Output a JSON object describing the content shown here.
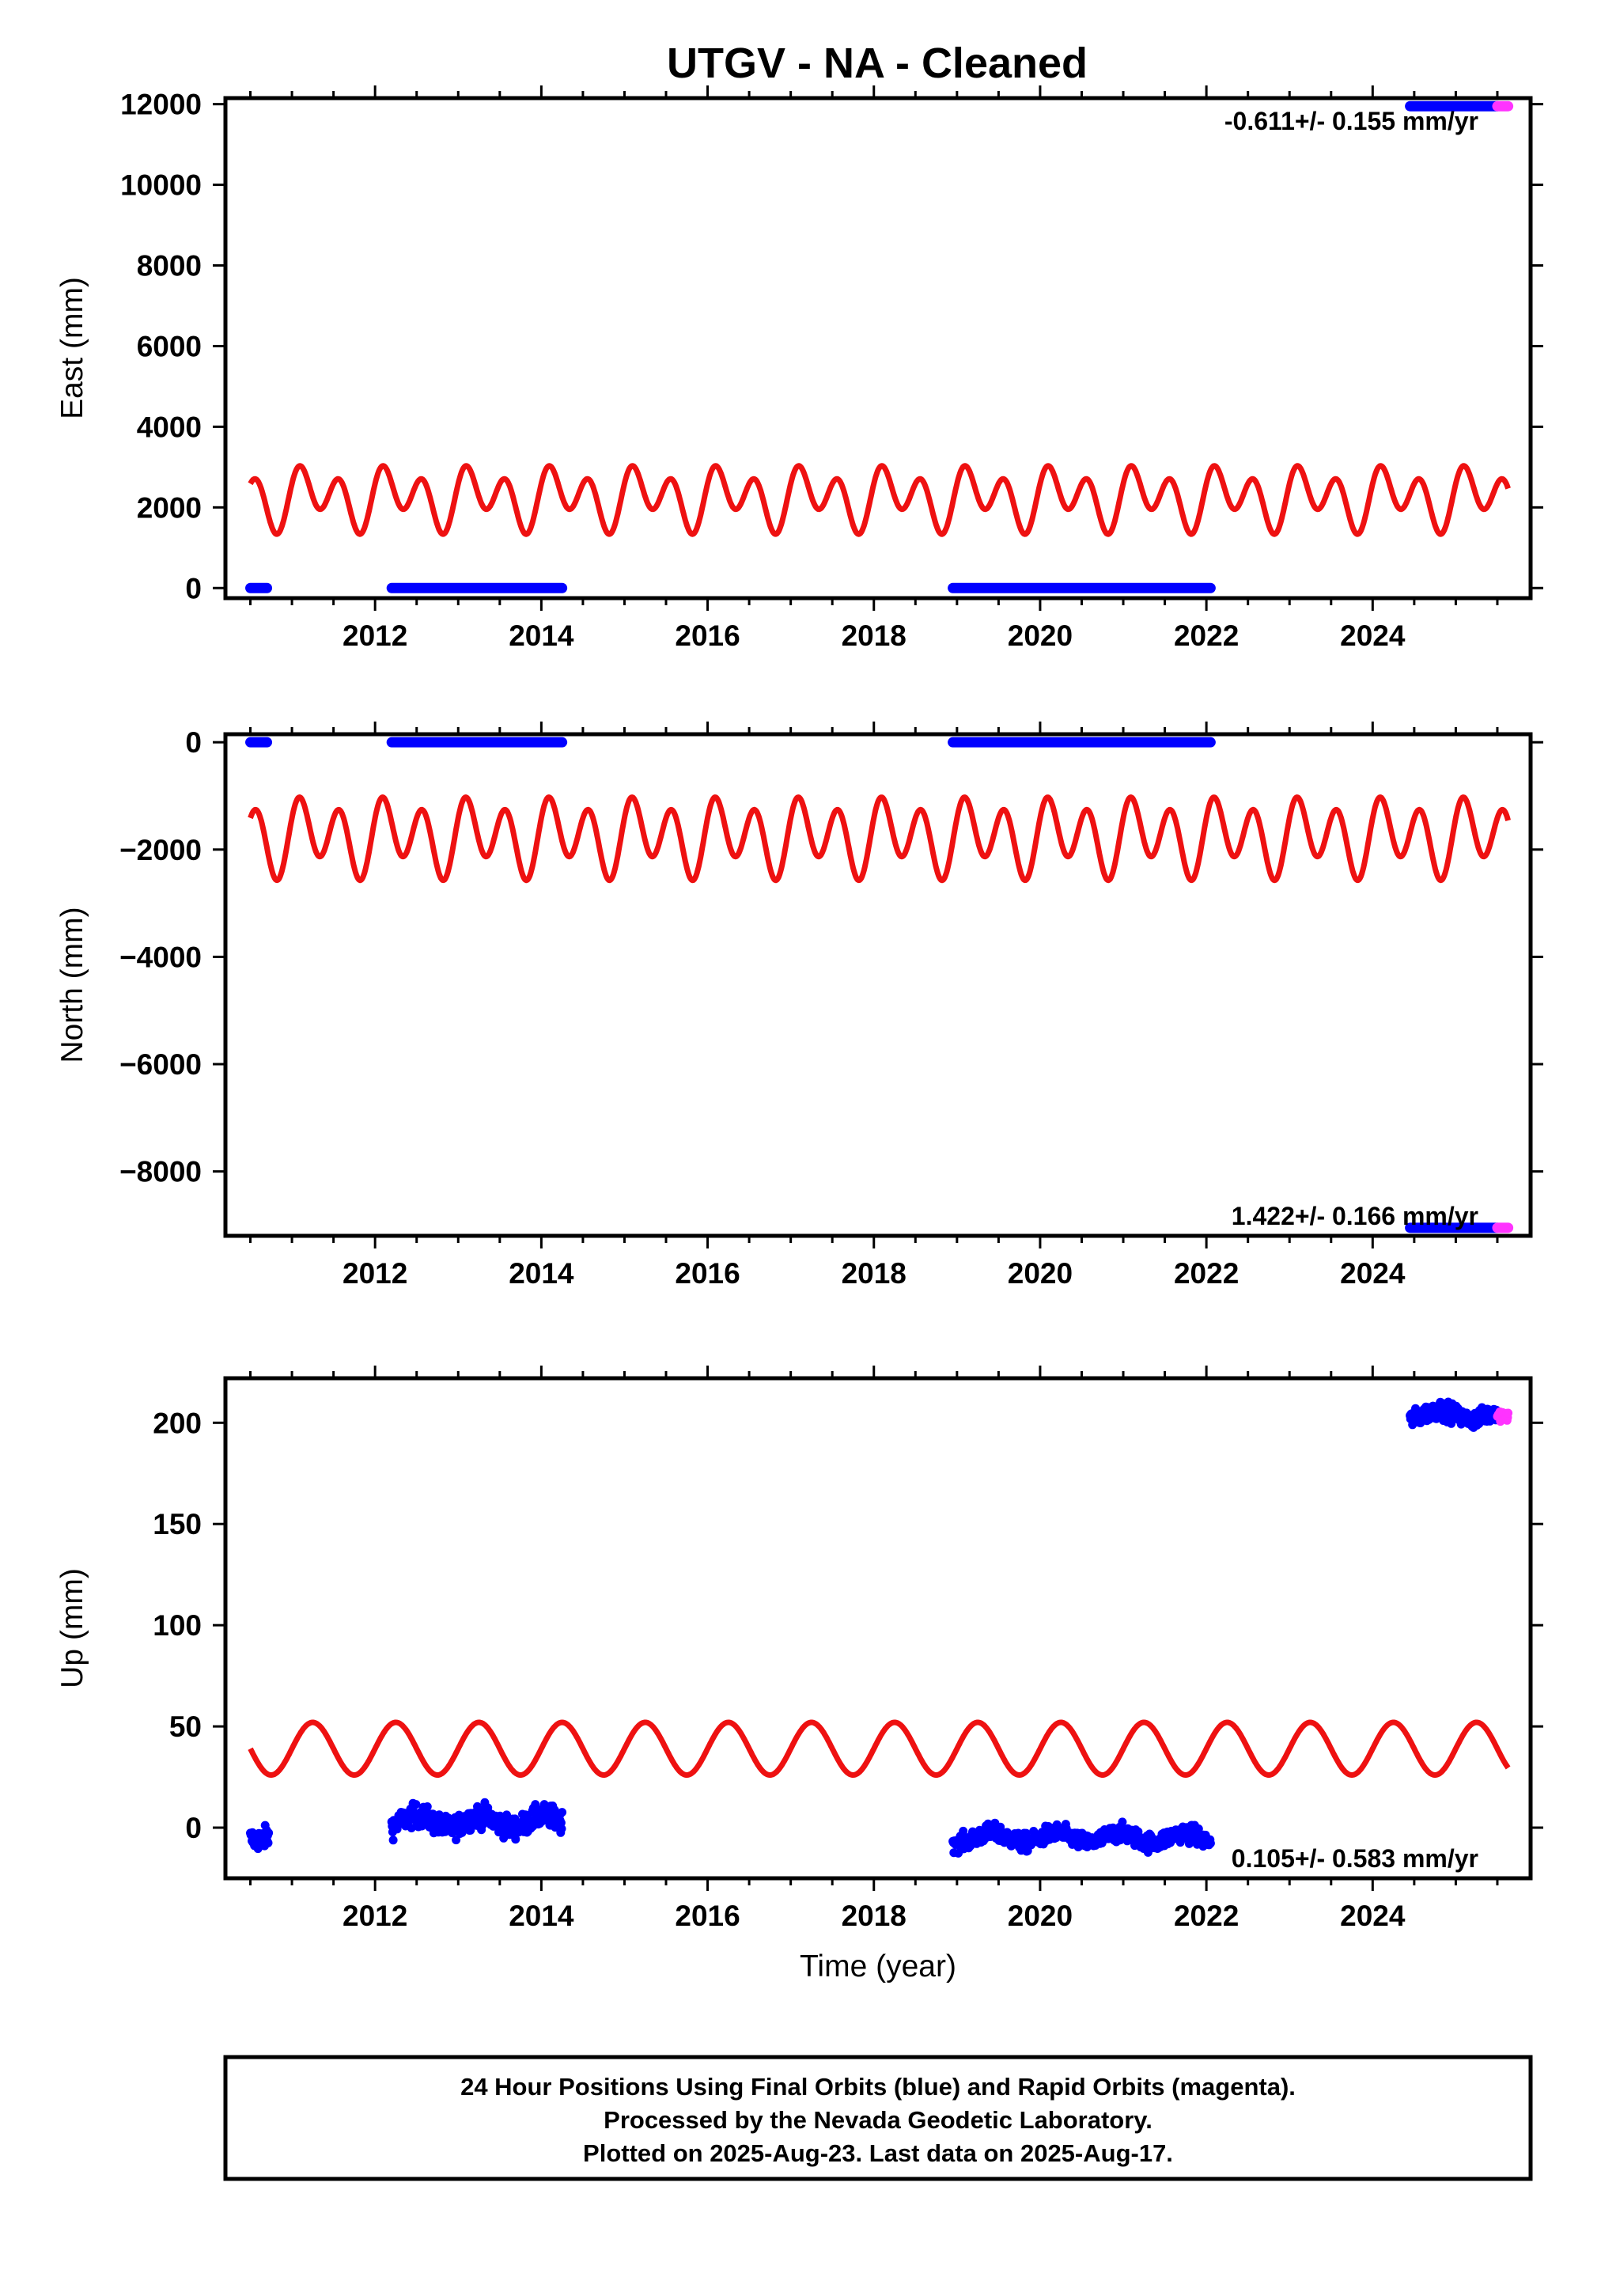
{
  "title": "UTGV  - NA - Cleaned",
  "colors": {
    "final_orbits": "#0000ff",
    "rapid_orbits": "#ff33ff",
    "seasonal_model": "#ee1111",
    "frame": "#000000"
  },
  "footnote": {
    "line1": "24 Hour Positions Using Final Orbits (blue) and Rapid Orbits (magenta).",
    "line2": "Processed by the Nevada Geodetic Laboratory.",
    "line3": "Plotted on 2025-Aug-23. Last data on 2025-Aug-17."
  },
  "chart_data": [
    {
      "type": "scatter",
      "id": "east",
      "ylabel": "East (mm)",
      "xlabel": "",
      "xlim": [
        2010.2,
        2025.9
      ],
      "ylim": [
        -250,
        12150
      ],
      "xticks": [
        2012,
        2014,
        2016,
        2018,
        2020,
        2022,
        2024
      ],
      "xtick_labels": [
        "2012",
        "2014",
        "2016",
        "2018",
        "2020",
        "2022",
        "2024"
      ],
      "yticks": [
        0,
        2000,
        4000,
        6000,
        8000,
        10000,
        12000
      ],
      "ytick_labels": [
        "0",
        "2000",
        "4000",
        "6000",
        "8000",
        "10000",
        "12000"
      ],
      "rate_label": "-0.611+/- 0.155 mm/yr",
      "rate_position": "top-right",
      "segments": [
        {
          "x": [
            2010.5,
            2010.7
          ],
          "y": 0,
          "orbit": "final"
        },
        {
          "x": [
            2012.2,
            2014.25
          ],
          "y": 0,
          "orbit": "final"
        },
        {
          "x": [
            2018.95,
            2022.05
          ],
          "y": 0,
          "orbit": "final"
        },
        {
          "x": [
            2024.45,
            2025.5
          ],
          "y": 11950,
          "orbit": "final"
        },
        {
          "x": [
            2025.5,
            2025.63
          ],
          "y": 11950,
          "orbit": "rapid"
        }
      ],
      "seasonal_model": {
        "x_start": 2010.5,
        "x_end": 2025.63,
        "offset": 2250,
        "annual_amplitude": 350,
        "semiannual_amplitude": 600
      }
    },
    {
      "type": "scatter",
      "id": "north",
      "ylabel": "North (mm)",
      "xlabel": "",
      "xlim": [
        2010.2,
        2025.9
      ],
      "ylim": [
        -9200,
        150
      ],
      "xticks": [
        2012,
        2014,
        2016,
        2018,
        2020,
        2022,
        2024
      ],
      "xtick_labels": [
        "2012",
        "2014",
        "2016",
        "2018",
        "2020",
        "2022",
        "2024"
      ],
      "yticks": [
        0,
        -2000,
        -4000,
        -6000,
        -8000
      ],
      "ytick_labels": [
        "0",
        "−2000",
        "−4000",
        "−6000",
        "−8000"
      ],
      "rate_label": "1.422+/- 0.166 mm/yr",
      "rate_position": "bottom-right",
      "segments": [
        {
          "x": [
            2010.5,
            2010.7
          ],
          "y": 0,
          "orbit": "final"
        },
        {
          "x": [
            2012.2,
            2014.25
          ],
          "y": 0,
          "orbit": "final"
        },
        {
          "x": [
            2018.95,
            2022.05
          ],
          "y": 0,
          "orbit": "final"
        },
        {
          "x": [
            2024.45,
            2025.5
          ],
          "y": -9050,
          "orbit": "final"
        },
        {
          "x": [
            2025.5,
            2025.63
          ],
          "y": -9050,
          "orbit": "rapid"
        }
      ],
      "seasonal_model": {
        "x_start": 2010.5,
        "x_end": 2025.63,
        "offset": -1750,
        "annual_amplitude": 250,
        "semiannual_amplitude": 600
      }
    },
    {
      "type": "scatter",
      "id": "up",
      "ylabel": "Up (mm)",
      "xlabel": "Time (year)",
      "xlim": [
        2010.2,
        2025.9
      ],
      "ylim": [
        -25,
        222
      ],
      "xticks": [
        2012,
        2014,
        2016,
        2018,
        2020,
        2022,
        2024
      ],
      "xtick_labels": [
        "2012",
        "2014",
        "2016",
        "2018",
        "2020",
        "2022",
        "2024"
      ],
      "yticks": [
        0,
        50,
        100,
        150,
        200
      ],
      "ytick_labels": [
        "0",
        "50",
        "100",
        "150",
        "200"
      ],
      "rate_label": "0.105+/- 0.583 mm/yr",
      "rate_position": "bottom-right",
      "clusters": [
        {
          "x": [
            2010.5,
            2010.72
          ],
          "y_mean": -3,
          "y_spread": 5,
          "orbit": "final"
        },
        {
          "x": [
            2012.2,
            2014.25
          ],
          "y_mean": 3,
          "y_spread": 5,
          "orbit": "final"
        },
        {
          "x": [
            2018.95,
            2022.05
          ],
          "y_mean": -5,
          "y_spread": 4,
          "orbit": "final"
        },
        {
          "x": [
            2024.45,
            2025.5
          ],
          "y_mean": 204,
          "y_spread": 4,
          "orbit": "final"
        },
        {
          "x": [
            2025.5,
            2025.63
          ],
          "y_mean": 202,
          "y_spread": 3,
          "orbit": "rapid"
        }
      ],
      "seasonal_model": {
        "x_start": 2010.5,
        "x_end": 2025.63,
        "offset": 39,
        "annual_amplitude": 13,
        "semiannual_amplitude": 0
      }
    }
  ]
}
